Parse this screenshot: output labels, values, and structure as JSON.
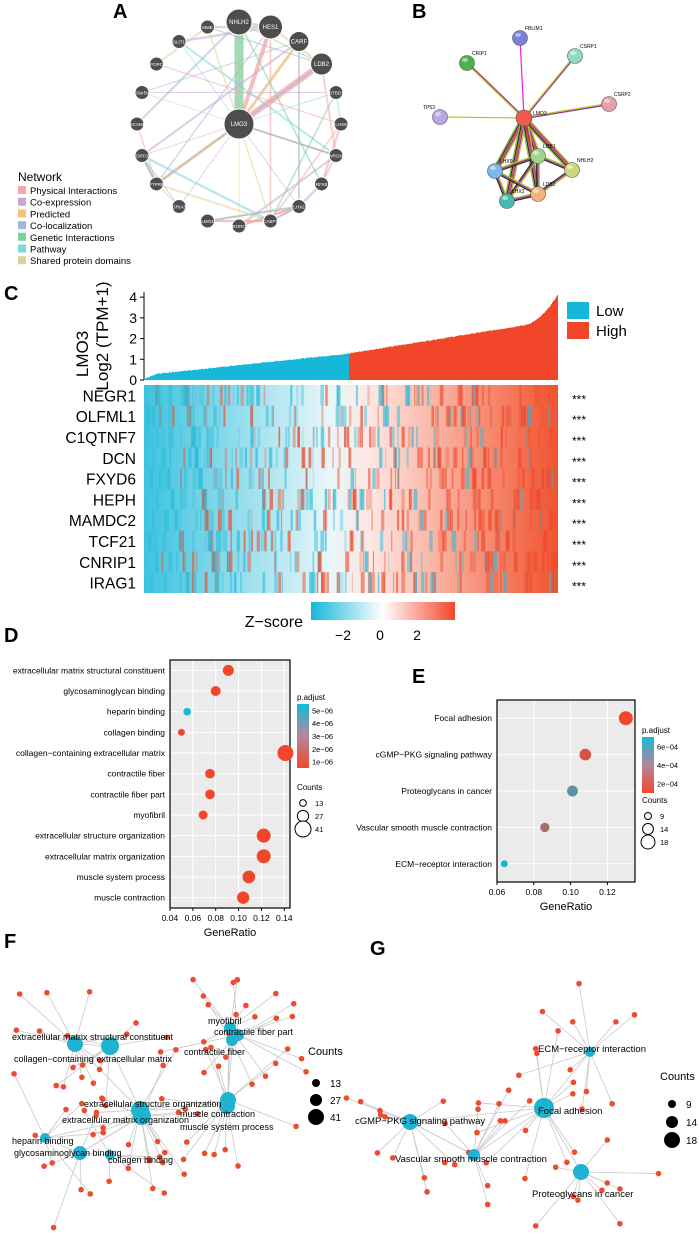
{
  "panels": {
    "A": "A",
    "B": "B",
    "C": "C",
    "D": "D",
    "E": "E",
    "F": "F",
    "G": "G"
  },
  "panelA": {
    "center": "LMO3",
    "nodes": [
      "NHLH2",
      "HES1",
      "CARF",
      "LDB2",
      "KBTBD11",
      "LHX9",
      "NRGN",
      "RFX8",
      "LHX2",
      "CABP1",
      "RORC",
      "LMO4",
      "GRIA3",
      "PTPRB",
      "DPF3",
      "DSCAML1",
      "C8orf34",
      "POPC",
      "SLIT1",
      "MME"
    ],
    "legend_title": "Network",
    "legend": [
      {
        "label": "Physical Interactions",
        "color": "#f4a6a8"
      },
      {
        "label": "Co-expression",
        "color": "#c9a5d6"
      },
      {
        "label": "Predicted",
        "color": "#f5c27a"
      },
      {
        "label": "Co-localization",
        "color": "#a4b6dd"
      },
      {
        "label": "Genetic Interactions",
        "color": "#7fd39a"
      },
      {
        "label": "Pathway",
        "color": "#7ed6d8"
      },
      {
        "label": "Shared protein domains",
        "color": "#dbd39a"
      }
    ]
  },
  "panelB": {
    "center": "LMO3",
    "nodes": [
      {
        "name": "FBLIM1",
        "color": "#7b7fd8"
      },
      {
        "name": "CRIP1",
        "color": "#4fb04f"
      },
      {
        "name": "CSRP1",
        "color": "#8fdcc3"
      },
      {
        "name": "CSRP2",
        "color": "#e8a0a8"
      },
      {
        "name": "TP53",
        "color": "#b8a6e6"
      },
      {
        "name": "LHX9",
        "color": "#7cb9e8"
      },
      {
        "name": "LDB1",
        "color": "#9fd68a"
      },
      {
        "name": "NHLH2",
        "color": "#c9d77f"
      },
      {
        "name": "LHX2",
        "color": "#46b9b0"
      },
      {
        "name": "LDB2",
        "color": "#f0b57a"
      }
    ]
  },
  "panelC": {
    "ylabel_gene": "LMO3",
    "ylabel_unit": "Log2 (TPM+1)",
    "yticks": [
      "0",
      "1",
      "2",
      "3",
      "4"
    ],
    "legend": [
      {
        "label": "Low",
        "color": "#15b8d8"
      },
      {
        "label": "High",
        "color": "#f2462b"
      }
    ],
    "genes": [
      "NEGR1",
      "OLFML1",
      "C1QTNF7",
      "DCN",
      "FXYD6",
      "HEPH",
      "MAMDC2",
      "TCF21",
      "CNRIP1",
      "IRAG1"
    ],
    "sig": "***",
    "zscore_label": "Z−score",
    "zscore_ticks": [
      "−2",
      "0",
      "2"
    ]
  },
  "chart_data": [
    {
      "panel": "D",
      "type": "scatter",
      "title": "",
      "xlabel": "GeneRatio",
      "ylabel": "",
      "xlim": [
        0.04,
        0.145
      ],
      "xticks": [
        "0.04",
        "0.06",
        "0.08",
        "0.10",
        "0.12",
        "0.14"
      ],
      "categories": [
        "extracellular matrix structural constituent",
        "glycosaminoglycan binding",
        "heparin binding",
        "collagen binding",
        "collagen−containing extracellular matrix",
        "contractile fiber",
        "contractile fiber part",
        "myofibril",
        "extracellular structure organization",
        "extracellular matrix organization",
        "muscle system process",
        "muscle contraction"
      ],
      "x": [
        0.091,
        0.08,
        0.055,
        0.05,
        0.141,
        0.075,
        0.075,
        0.069,
        0.122,
        0.122,
        0.109,
        0.104
      ],
      "counts": [
        26,
        23,
        16,
        14,
        41,
        22,
        22,
        20,
        35,
        35,
        31,
        30
      ],
      "padjust": [
        1e-06,
        1e-06,
        5e-06,
        1e-06,
        1e-06,
        1e-06,
        1e-06,
        1e-06,
        1e-06,
        1e-06,
        1e-06,
        1e-06
      ],
      "color_legend_title": "p.adjust",
      "color_ticks": [
        "5e−06",
        "4e−06",
        "3e−06",
        "2e−06",
        "1e−06"
      ],
      "size_legend_title": "Counts",
      "size_legend": [
        "13",
        "27",
        "41"
      ]
    },
    {
      "panel": "E",
      "type": "scatter",
      "title": "",
      "xlabel": "GeneRatio",
      "ylabel": "",
      "xlim": [
        0.06,
        0.135
      ],
      "xticks": [
        "0.06",
        "0.08",
        "0.10",
        "0.12"
      ],
      "categories": [
        "Focal adhesion",
        "cGMP−PKG signaling pathway",
        "Proteoglycans in cancer",
        "Vascular smooth muscle contraction",
        "ECM−receptor interaction"
      ],
      "x": [
        0.13,
        0.108,
        0.101,
        0.086,
        0.064
      ],
      "counts": [
        18,
        15,
        14,
        12,
        9
      ],
      "padjust": [
        2e-05,
        0.0001,
        0.00045,
        0.00025,
        0.00065
      ],
      "color_legend_title": "p.adjust",
      "color_ticks": [
        "6e−04",
        "4e−04",
        "2e−04"
      ],
      "size_legend_title": "Counts",
      "size_legend": [
        "9",
        "14",
        "18"
      ]
    }
  ],
  "panelF": {
    "terms": [
      "extracellular matrix structural constituent",
      "collagen−containing extracellular matrix",
      "myofibril",
      "contractile fiber part",
      "contractile fiber",
      "extracellular structure organization",
      "extracellular matrix organization",
      "muscle contraction",
      "muscle system process",
      "heparin binding",
      "glycosaminoglycan binding",
      "collagen binding"
    ],
    "counts_title": "Counts",
    "counts": [
      "13",
      "27",
      "41"
    ]
  },
  "panelG": {
    "terms": [
      "ECM−receptor interaction",
      "Focal adhesion",
      "cGMP−PKG signaling pathway",
      "Vascular smooth muscle contraction",
      "Proteoglycans in cancer"
    ],
    "counts_title": "Counts",
    "counts": [
      "9",
      "14",
      "18"
    ]
  }
}
